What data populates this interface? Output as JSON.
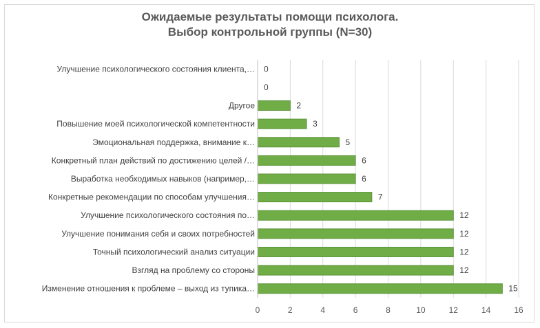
{
  "chart_data": {
    "type": "bar",
    "orientation": "horizontal",
    "title_lines": [
      "Ожидаемые результаты помощи психолога.",
      "Выбор контрольной группы (N=30)"
    ],
    "categories": [
      "Улучшение психологического состояния клиента,…",
      "",
      "Другое",
      "Повышение моей психологической компетентности",
      "Эмоциональная поддержка, внимание к…",
      "Конкретный план действий по достижению целей /…",
      "Выработка необходимых навыков (например,…",
      "Конкретные рекомендации по способам улучшения…",
      "Улучшение психологического состояния по…",
      "Улучшение понимания себя и своих потребностей",
      "Точный психологический анализ ситуации",
      "Взгляд на проблему со стороны",
      "Изменение отношения к проблеме – выход из тупика…"
    ],
    "values": [
      0,
      0,
      2,
      3,
      5,
      6,
      6,
      7,
      12,
      12,
      12,
      12,
      15
    ],
    "xlim": [
      0,
      16
    ],
    "xticks": [
      0,
      2,
      4,
      6,
      8,
      10,
      12,
      14,
      16
    ],
    "grid": "vertical",
    "bar_color": "#71ad47",
    "bar_border_color": "#5a9236",
    "gridline_color": "#d9d9d9"
  }
}
